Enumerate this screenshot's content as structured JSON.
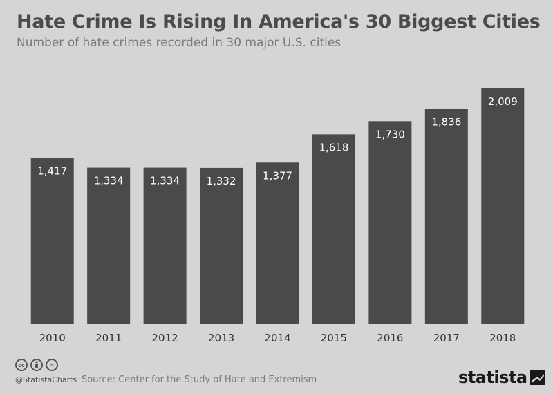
{
  "header": {
    "title": "Hate Crime Is Rising In America's 30 Biggest Cities",
    "subtitle": "Number of hate crimes recorded in 30 major U.S. cities"
  },
  "footer": {
    "handle": "@StatistaCharts",
    "source": "Source: Center for the Study of Hate and Extremism",
    "brand": "statista",
    "license_icons": [
      "cc",
      "by",
      "="
    ]
  },
  "colors": {
    "background": "#d5d5d5",
    "bar": "#4a4a4a",
    "bar_label": "#ffffff"
  },
  "chart_data": {
    "type": "bar",
    "title": "Hate Crime Is Rising In America's 30 Biggest Cities",
    "subtitle": "Number of hate crimes recorded in 30 major U.S. cities",
    "categories": [
      "2010",
      "2011",
      "2012",
      "2013",
      "2014",
      "2015",
      "2016",
      "2017",
      "2018"
    ],
    "values": [
      1417,
      1334,
      1334,
      1332,
      1377,
      1618,
      1730,
      1836,
      2009
    ],
    "value_labels": [
      "1,417",
      "1,334",
      "1,334",
      "1,332",
      "1,377",
      "1,618",
      "1,730",
      "1,836",
      "2,009"
    ],
    "xlabel": "",
    "ylabel": "",
    "ylim": [
      0,
      2009
    ],
    "grid": false,
    "legend": "none"
  }
}
